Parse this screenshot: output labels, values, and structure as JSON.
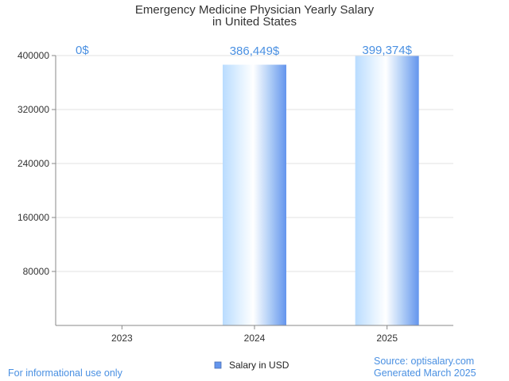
{
  "chart_data": {
    "type": "bar",
    "title_lines": [
      "Emergency Medicine Physician Yearly Salary",
      "in United States"
    ],
    "categories": [
      "2023",
      "2024",
      "2025"
    ],
    "series": [
      {
        "name": "Salary in USD",
        "values": [
          0,
          386449,
          399374
        ]
      }
    ],
    "data_labels": [
      "0$",
      "386,449$",
      "399,374$"
    ],
    "y_ticks": [
      80000,
      160000,
      240000,
      320000,
      400000
    ],
    "y_tick_labels": [
      "80000",
      "160000",
      "240000",
      "320000",
      "400000"
    ],
    "ylim": [
      0,
      400000
    ],
    "grid": true,
    "legend_position": "bottom"
  },
  "footer": {
    "left_note": "For informational use only",
    "source": "Source: optisalary.com",
    "generated": "Generated March 2025"
  },
  "colors": {
    "bar_light": "#cde8ff",
    "bar_mid": "#ffffff",
    "bar_dark": "#6495ed",
    "label": "#4a90e2",
    "grid": "#e0e0e0",
    "axis": "#888888"
  }
}
